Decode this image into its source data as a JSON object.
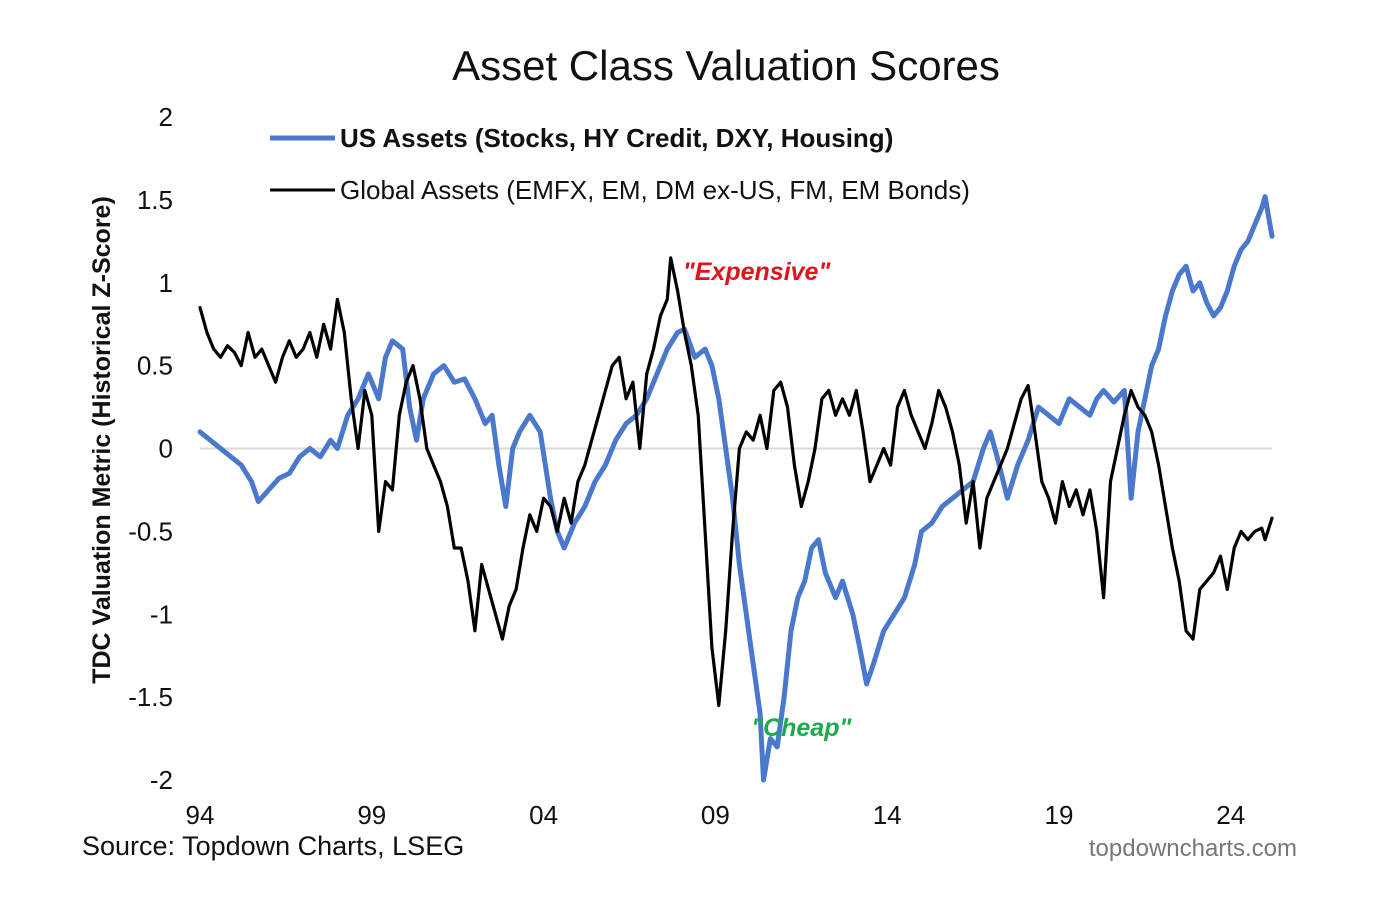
{
  "colors": {
    "us_series": "#4a78cc",
    "global_series": "#000000",
    "expensive": "#e0141c",
    "cheap": "#1fa84f",
    "zero_line": "#d9d9d9",
    "credit": "#777777"
  },
  "source": "Source: Topdown Charts, LSEG",
  "credit": "topdowncharts.com",
  "chart_data": {
    "type": "line",
    "title": "Asset Class Valuation Scores",
    "ylabel": "TDC Valuation Metric (Historical Z-Score)",
    "xlabel": "",
    "x_ticks": [
      "94",
      "99",
      "04",
      "09",
      "14",
      "19",
      "24"
    ],
    "x_tick_years": [
      1994,
      1999,
      2004,
      2009,
      2014,
      2019,
      2024
    ],
    "xlim": [
      1994,
      2025.2
    ],
    "ylim": [
      -2,
      2
    ],
    "y_ticks": [
      2,
      1.5,
      1,
      0.5,
      0,
      -0.5,
      -1,
      -1.5,
      -2
    ],
    "y_tick_labels": [
      "2",
      "1.5",
      "1",
      "0.5",
      "0",
      "-0.5",
      "-1",
      "-1.5",
      "-2"
    ],
    "reference_line": 0,
    "grid": false,
    "legend_position": "top-left",
    "annotations": [
      {
        "text": "\"Expensive\"",
        "x": 2010.2,
        "y": 1.07,
        "color_key": "expensive"
      },
      {
        "text": "\"Cheap\"",
        "x": 2011.5,
        "y": -1.68,
        "color_key": "cheap"
      }
    ],
    "series": [
      {
        "name": "US Assets (Stocks, HY Credit, DXY, Housing)",
        "color_key": "us_series",
        "points": [
          [
            1994.0,
            0.1
          ],
          [
            1994.3,
            0.05
          ],
          [
            1994.6,
            0.0
          ],
          [
            1994.9,
            -0.05
          ],
          [
            1995.2,
            -0.1
          ],
          [
            1995.5,
            -0.2
          ],
          [
            1995.7,
            -0.32
          ],
          [
            1996.0,
            -0.25
          ],
          [
            1996.3,
            -0.18
          ],
          [
            1996.6,
            -0.15
          ],
          [
            1996.9,
            -0.05
          ],
          [
            1997.2,
            0.0
          ],
          [
            1997.5,
            -0.05
          ],
          [
            1997.8,
            0.05
          ],
          [
            1998.0,
            0.0
          ],
          [
            1998.3,
            0.2
          ],
          [
            1998.6,
            0.3
          ],
          [
            1998.9,
            0.45
          ],
          [
            1999.2,
            0.3
          ],
          [
            1999.4,
            0.55
          ],
          [
            1999.6,
            0.65
          ],
          [
            1999.9,
            0.6
          ],
          [
            2000.1,
            0.25
          ],
          [
            2000.3,
            0.05
          ],
          [
            2000.5,
            0.3
          ],
          [
            2000.8,
            0.45
          ],
          [
            2001.1,
            0.5
          ],
          [
            2001.4,
            0.4
          ],
          [
            2001.7,
            0.42
          ],
          [
            2002.0,
            0.3
          ],
          [
            2002.3,
            0.15
          ],
          [
            2002.5,
            0.2
          ],
          [
            2002.7,
            -0.1
          ],
          [
            2002.9,
            -0.35
          ],
          [
            2003.1,
            0.0
          ],
          [
            2003.3,
            0.1
          ],
          [
            2003.6,
            0.2
          ],
          [
            2003.9,
            0.1
          ],
          [
            2004.2,
            -0.3
          ],
          [
            2004.4,
            -0.5
          ],
          [
            2004.6,
            -0.6
          ],
          [
            2004.9,
            -0.45
          ],
          [
            2005.2,
            -0.35
          ],
          [
            2005.5,
            -0.2
          ],
          [
            2005.8,
            -0.1
          ],
          [
            2006.1,
            0.05
          ],
          [
            2006.4,
            0.15
          ],
          [
            2006.7,
            0.2
          ],
          [
            2007.0,
            0.3
          ],
          [
            2007.3,
            0.45
          ],
          [
            2007.6,
            0.6
          ],
          [
            2007.9,
            0.7
          ],
          [
            2008.1,
            0.72
          ],
          [
            2008.4,
            0.55
          ],
          [
            2008.7,
            0.6
          ],
          [
            2008.9,
            0.5
          ],
          [
            2009.1,
            0.3
          ],
          [
            2009.3,
            0.0
          ],
          [
            2009.5,
            -0.3
          ],
          [
            2009.7,
            -0.7
          ],
          [
            2009.9,
            -1.0
          ],
          [
            2010.1,
            -1.3
          ],
          [
            2010.3,
            -1.6
          ],
          [
            2010.4,
            -2.0
          ],
          [
            2010.6,
            -1.75
          ],
          [
            2010.8,
            -1.8
          ],
          [
            2011.0,
            -1.5
          ],
          [
            2011.2,
            -1.1
          ],
          [
            2011.4,
            -0.9
          ],
          [
            2011.6,
            -0.8
          ],
          [
            2011.8,
            -0.6
          ],
          [
            2012.0,
            -0.55
          ],
          [
            2012.2,
            -0.75
          ],
          [
            2012.5,
            -0.9
          ],
          [
            2012.7,
            -0.8
          ],
          [
            2013.0,
            -1.0
          ],
          [
            2013.2,
            -1.2
          ],
          [
            2013.4,
            -1.42
          ],
          [
            2013.6,
            -1.3
          ],
          [
            2013.9,
            -1.1
          ],
          [
            2014.2,
            -1.0
          ],
          [
            2014.5,
            -0.9
          ],
          [
            2014.8,
            -0.7
          ],
          [
            2015.0,
            -0.5
          ],
          [
            2015.3,
            -0.45
          ],
          [
            2015.6,
            -0.35
          ],
          [
            2015.9,
            -0.3
          ],
          [
            2016.2,
            -0.25
          ],
          [
            2016.5,
            -0.2
          ],
          [
            2016.8,
            0.0
          ],
          [
            2017.0,
            0.1
          ],
          [
            2017.2,
            -0.05
          ],
          [
            2017.5,
            -0.3
          ],
          [
            2017.8,
            -0.1
          ],
          [
            2018.1,
            0.05
          ],
          [
            2018.4,
            0.25
          ],
          [
            2018.7,
            0.2
          ],
          [
            2019.0,
            0.15
          ],
          [
            2019.3,
            0.3
          ],
          [
            2019.6,
            0.25
          ],
          [
            2019.9,
            0.2
          ],
          [
            2020.1,
            0.3
          ],
          [
            2020.3,
            0.35
          ],
          [
            2020.6,
            0.28
          ],
          [
            2020.9,
            0.35
          ],
          [
            2021.1,
            -0.3
          ],
          [
            2021.3,
            0.1
          ],
          [
            2021.5,
            0.3
          ],
          [
            2021.7,
            0.5
          ],
          [
            2021.9,
            0.6
          ],
          [
            2022.1,
            0.8
          ],
          [
            2022.3,
            0.95
          ],
          [
            2022.5,
            1.05
          ],
          [
            2022.7,
            1.1
          ],
          [
            2022.9,
            0.95
          ],
          [
            2023.1,
            1.0
          ],
          [
            2023.3,
            0.88
          ],
          [
            2023.5,
            0.8
          ],
          [
            2023.7,
            0.85
          ],
          [
            2023.9,
            0.95
          ],
          [
            2024.1,
            1.1
          ],
          [
            2024.3,
            1.2
          ],
          [
            2024.5,
            1.25
          ],
          [
            2024.7,
            1.35
          ],
          [
            2024.9,
            1.45
          ],
          [
            2025.0,
            1.52
          ],
          [
            2025.2,
            1.28
          ]
        ]
      },
      {
        "name": "Global Assets (EMFX, EM, DM ex-US, FM, EM Bonds)",
        "color_key": "global_series",
        "points": [
          [
            1994.0,
            0.85
          ],
          [
            1994.2,
            0.7
          ],
          [
            1994.4,
            0.6
          ],
          [
            1994.6,
            0.55
          ],
          [
            1994.8,
            0.62
          ],
          [
            1995.0,
            0.58
          ],
          [
            1995.2,
            0.5
          ],
          [
            1995.4,
            0.7
          ],
          [
            1995.6,
            0.55
          ],
          [
            1995.8,
            0.6
          ],
          [
            1996.0,
            0.5
          ],
          [
            1996.2,
            0.4
          ],
          [
            1996.4,
            0.55
          ],
          [
            1996.6,
            0.65
          ],
          [
            1996.8,
            0.55
          ],
          [
            1997.0,
            0.6
          ],
          [
            1997.2,
            0.7
          ],
          [
            1997.4,
            0.55
          ],
          [
            1997.6,
            0.75
          ],
          [
            1997.8,
            0.6
          ],
          [
            1998.0,
            0.9
          ],
          [
            1998.2,
            0.7
          ],
          [
            1998.4,
            0.3
          ],
          [
            1998.6,
            0.0
          ],
          [
            1998.8,
            0.35
          ],
          [
            1999.0,
            0.2
          ],
          [
            1999.2,
            -0.5
          ],
          [
            1999.4,
            -0.2
          ],
          [
            1999.6,
            -0.25
          ],
          [
            1999.8,
            0.2
          ],
          [
            2000.0,
            0.4
          ],
          [
            2000.2,
            0.5
          ],
          [
            2000.4,
            0.3
          ],
          [
            2000.6,
            0.0
          ],
          [
            2000.8,
            -0.1
          ],
          [
            2001.0,
            -0.2
          ],
          [
            2001.2,
            -0.35
          ],
          [
            2001.4,
            -0.6
          ],
          [
            2001.6,
            -0.6
          ],
          [
            2001.8,
            -0.8
          ],
          [
            2002.0,
            -1.1
          ],
          [
            2002.2,
            -0.7
          ],
          [
            2002.4,
            -0.85
          ],
          [
            2002.6,
            -1.0
          ],
          [
            2002.8,
            -1.15
          ],
          [
            2003.0,
            -0.95
          ],
          [
            2003.2,
            -0.85
          ],
          [
            2003.4,
            -0.6
          ],
          [
            2003.6,
            -0.4
          ],
          [
            2003.8,
            -0.5
          ],
          [
            2004.0,
            -0.3
          ],
          [
            2004.2,
            -0.35
          ],
          [
            2004.4,
            -0.5
          ],
          [
            2004.6,
            -0.3
          ],
          [
            2004.8,
            -0.45
          ],
          [
            2005.0,
            -0.2
          ],
          [
            2005.2,
            -0.1
          ],
          [
            2005.4,
            0.05
          ],
          [
            2005.6,
            0.2
          ],
          [
            2005.8,
            0.35
          ],
          [
            2006.0,
            0.5
          ],
          [
            2006.2,
            0.55
          ],
          [
            2006.4,
            0.3
          ],
          [
            2006.6,
            0.4
          ],
          [
            2006.8,
            0.0
          ],
          [
            2007.0,
            0.45
          ],
          [
            2007.2,
            0.6
          ],
          [
            2007.4,
            0.8
          ],
          [
            2007.6,
            0.9
          ],
          [
            2007.7,
            1.15
          ],
          [
            2007.9,
            0.95
          ],
          [
            2008.1,
            0.7
          ],
          [
            2008.3,
            0.5
          ],
          [
            2008.5,
            0.2
          ],
          [
            2008.7,
            -0.5
          ],
          [
            2008.9,
            -1.2
          ],
          [
            2009.1,
            -1.55
          ],
          [
            2009.3,
            -1.1
          ],
          [
            2009.5,
            -0.5
          ],
          [
            2009.7,
            0.0
          ],
          [
            2009.9,
            0.1
          ],
          [
            2010.1,
            0.05
          ],
          [
            2010.3,
            0.2
          ],
          [
            2010.5,
            0.0
          ],
          [
            2010.7,
            0.35
          ],
          [
            2010.9,
            0.4
          ],
          [
            2011.1,
            0.25
          ],
          [
            2011.3,
            -0.1
          ],
          [
            2011.5,
            -0.35
          ],
          [
            2011.7,
            -0.2
          ],
          [
            2011.9,
            0.0
          ],
          [
            2012.1,
            0.3
          ],
          [
            2012.3,
            0.35
          ],
          [
            2012.5,
            0.2
          ],
          [
            2012.7,
            0.3
          ],
          [
            2012.9,
            0.2
          ],
          [
            2013.1,
            0.35
          ],
          [
            2013.3,
            0.1
          ],
          [
            2013.5,
            -0.2
          ],
          [
            2013.7,
            -0.1
          ],
          [
            2013.9,
            0.0
          ],
          [
            2014.1,
            -0.1
          ],
          [
            2014.3,
            0.25
          ],
          [
            2014.5,
            0.35
          ],
          [
            2014.7,
            0.2
          ],
          [
            2014.9,
            0.1
          ],
          [
            2015.1,
            0.0
          ],
          [
            2015.3,
            0.15
          ],
          [
            2015.5,
            0.35
          ],
          [
            2015.7,
            0.25
          ],
          [
            2015.9,
            0.1
          ],
          [
            2016.1,
            -0.1
          ],
          [
            2016.3,
            -0.45
          ],
          [
            2016.5,
            -0.2
          ],
          [
            2016.7,
            -0.6
          ],
          [
            2016.9,
            -0.3
          ],
          [
            2017.1,
            -0.2
          ],
          [
            2017.3,
            -0.1
          ],
          [
            2017.5,
            0.0
          ],
          [
            2017.7,
            0.15
          ],
          [
            2017.9,
            0.3
          ],
          [
            2018.1,
            0.38
          ],
          [
            2018.3,
            0.1
          ],
          [
            2018.5,
            -0.2
          ],
          [
            2018.7,
            -0.3
          ],
          [
            2018.9,
            -0.45
          ],
          [
            2019.1,
            -0.2
          ],
          [
            2019.3,
            -0.35
          ],
          [
            2019.5,
            -0.25
          ],
          [
            2019.7,
            -0.4
          ],
          [
            2019.9,
            -0.25
          ],
          [
            2020.1,
            -0.5
          ],
          [
            2020.3,
            -0.9
          ],
          [
            2020.5,
            -0.2
          ],
          [
            2020.7,
            0.0
          ],
          [
            2020.9,
            0.2
          ],
          [
            2021.1,
            0.35
          ],
          [
            2021.3,
            0.25
          ],
          [
            2021.5,
            0.2
          ],
          [
            2021.7,
            0.1
          ],
          [
            2021.9,
            -0.1
          ],
          [
            2022.1,
            -0.35
          ],
          [
            2022.3,
            -0.6
          ],
          [
            2022.5,
            -0.8
          ],
          [
            2022.7,
            -1.1
          ],
          [
            2022.9,
            -1.15
          ],
          [
            2023.1,
            -0.85
          ],
          [
            2023.3,
            -0.8
          ],
          [
            2023.5,
            -0.75
          ],
          [
            2023.7,
            -0.65
          ],
          [
            2023.9,
            -0.85
          ],
          [
            2024.1,
            -0.6
          ],
          [
            2024.3,
            -0.5
          ],
          [
            2024.5,
            -0.55
          ],
          [
            2024.7,
            -0.5
          ],
          [
            2024.9,
            -0.48
          ],
          [
            2025.0,
            -0.55
          ],
          [
            2025.2,
            -0.42
          ]
        ]
      }
    ]
  }
}
